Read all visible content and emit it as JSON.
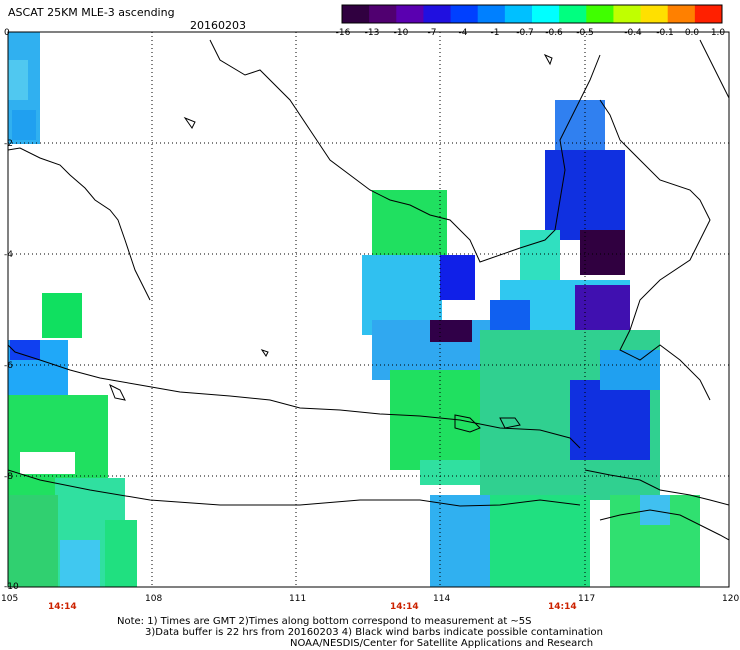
{
  "title": "ASCAT 25KM MLE-3 ascending",
  "date": "20160203",
  "colorbar": {
    "labels": [
      "-16",
      "-13",
      "-10",
      "-7",
      "-4",
      "-1",
      "-0.7",
      "-0.6",
      "-0.5",
      "-0.4",
      "-0.1",
      "0.0",
      "1.0"
    ],
    "colors": [
      "#300040",
      "#500070",
      "#5a00b0",
      "#2010e0",
      "#0040ff",
      "#0080ff",
      "#00c0ff",
      "#00ffff",
      "#00ff80",
      "#40ff00",
      "#c0ff00",
      "#ffe000",
      "#ff8000",
      "#ff2000"
    ]
  },
  "map": {
    "lon_labels": [
      "105",
      "108",
      "111",
      "114",
      "117",
      "120"
    ],
    "lat_labels": [
      "0",
      "-2",
      "-4",
      "-6",
      "-8",
      "-10"
    ],
    "time_labels": [
      "14:14",
      "14:14",
      "14:14"
    ],
    "time_color": "#cc2200",
    "region": {
      "lon_min": 105,
      "lon_max": 120,
      "lat_min": -10,
      "lat_max": 0
    }
  },
  "notes": {
    "line1": "Note: 1) Times are GMT 2)Times along bottom correspond to measurement at ~5S",
    "line2": "3)Data buffer is 22 hrs from 20160203 4) Black wind barbs indicate possible contamination",
    "line3": "NOAA/NESDIS/Center for Satellite Applications and Research"
  }
}
